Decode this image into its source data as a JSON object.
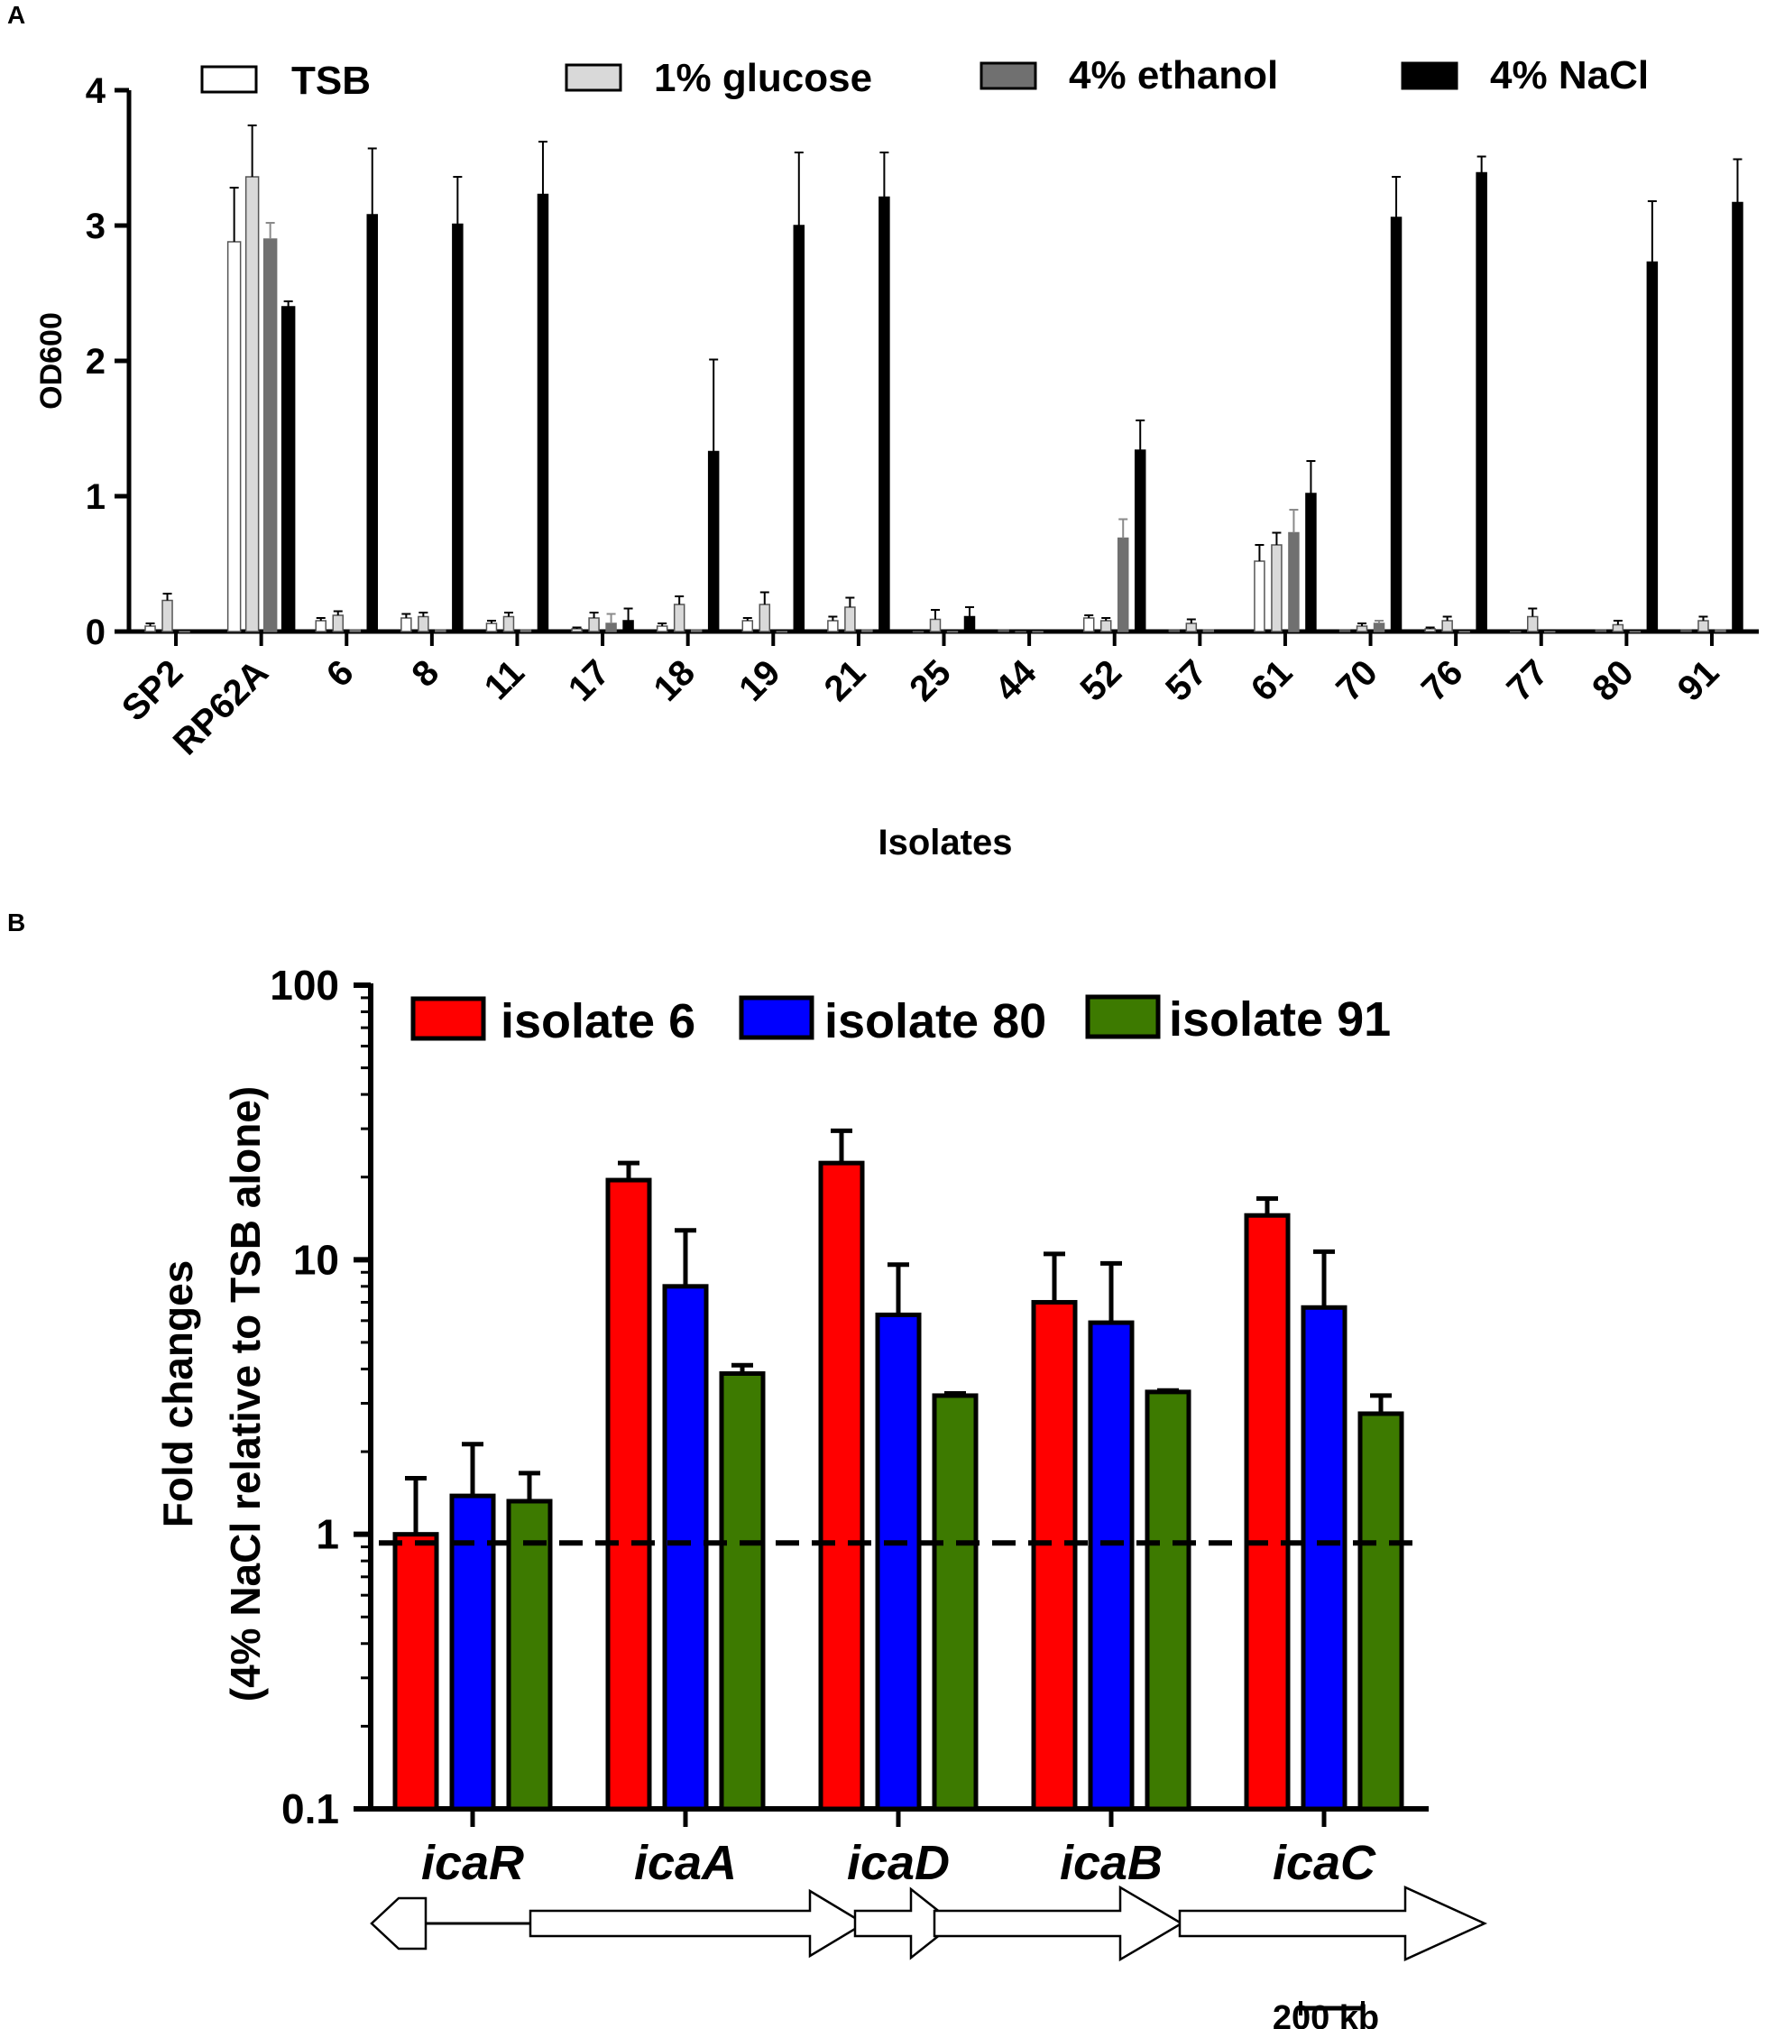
{
  "colors": {
    "tsb": "#ffffff",
    "glucose": "#d9d9d9",
    "ethanol": "#707070",
    "nacl": "#000000",
    "isolate6": "#ff0000",
    "isolate80": "#0000ff",
    "isolate91": "#3d7a00"
  },
  "panel_a": {
    "label": "A",
    "chart_data": {
      "type": "bar",
      "title": "",
      "xlabel": "Isolates",
      "ylabel": "OD600",
      "ylim": [
        0,
        4
      ],
      "yticks": [
        "0",
        "1",
        "2",
        "3",
        "4"
      ],
      "categories": [
        "SP2",
        "RP62A",
        "6",
        "8",
        "11",
        "17",
        "18",
        "19",
        "21",
        "25",
        "44",
        "52",
        "57",
        "61",
        "70",
        "76",
        "77",
        "80",
        "91"
      ],
      "series": [
        {
          "name": "TSB",
          "color_key": "tsb",
          "values": [
            0.04,
            2.88,
            0.08,
            0.1,
            0.06,
            0.02,
            0.04,
            0.08,
            0.08,
            0.0,
            0.01,
            0.1,
            0.01,
            0.52,
            0.01,
            0.02,
            0.0,
            0.01,
            0.01
          ],
          "errors": [
            0.02,
            0.4,
            0.02,
            0.03,
            0.02,
            0.01,
            0.02,
            0.02,
            0.03,
            0.0,
            0.0,
            0.02,
            0.0,
            0.12,
            0.0,
            0.01,
            0.0,
            0.0,
            0.0
          ]
        },
        {
          "name": "1% glucose",
          "color_key": "glucose",
          "values": [
            0.23,
            3.36,
            0.12,
            0.11,
            0.11,
            0.1,
            0.2,
            0.2,
            0.18,
            0.09,
            0.0,
            0.08,
            0.06,
            0.64,
            0.04,
            0.08,
            0.11,
            0.05,
            0.08
          ],
          "errors": [
            0.05,
            0.38,
            0.03,
            0.03,
            0.03,
            0.04,
            0.06,
            0.09,
            0.07,
            0.07,
            0.0,
            0.02,
            0.03,
            0.09,
            0.02,
            0.03,
            0.06,
            0.03,
            0.03
          ]
        },
        {
          "name": "4% ethanol",
          "color_key": "ethanol",
          "values": [
            0.0,
            2.9,
            0.01,
            0.01,
            0.01,
            0.06,
            0.01,
            0.0,
            0.01,
            0.0,
            0.0,
            0.69,
            0.01,
            0.73,
            0.06,
            0.0,
            0.0,
            0.0,
            0.01
          ],
          "errors": [
            0.0,
            0.12,
            0.0,
            0.0,
            0.0,
            0.07,
            0.0,
            0.0,
            0.0,
            0.0,
            0.0,
            0.14,
            0.0,
            0.17,
            0.02,
            0.0,
            0.0,
            0.0,
            0.0
          ]
        },
        {
          "name": "4% NaCl",
          "color_key": "nacl",
          "values": [
            0.01,
            2.4,
            3.08,
            3.01,
            3.23,
            0.08,
            1.33,
            3.0,
            3.21,
            0.11,
            0.0,
            1.34,
            0.0,
            1.02,
            3.06,
            3.39,
            0.0,
            2.73,
            3.17
          ],
          "errors": [
            0.0,
            0.04,
            0.49,
            0.35,
            0.39,
            0.09,
            0.68,
            0.54,
            0.33,
            0.07,
            0.0,
            0.22,
            0.0,
            0.24,
            0.3,
            0.12,
            0.0,
            0.45,
            0.32
          ]
        }
      ]
    }
  },
  "panel_b": {
    "label": "B",
    "chart_data": {
      "type": "bar",
      "title": "",
      "xlabel": "",
      "ylabel_line1": "Fold changes",
      "ylabel_line2": "(4% NaCl relative to TSB alone)",
      "yscale": "log",
      "ylim": [
        0.1,
        100
      ],
      "yticks": [
        "0.1",
        "1",
        "10",
        "100"
      ],
      "reference_line": 0.93,
      "categories": [
        "icaR",
        "icaA",
        "icaD",
        "icaB",
        "icaC"
      ],
      "series": [
        {
          "name": "isolate 6",
          "color_key": "isolate6",
          "values": [
            1.0,
            19.5,
            22.5,
            7.0,
            14.5
          ],
          "errors": [
            0.6,
            3.0,
            7.0,
            3.5,
            2.2
          ]
        },
        {
          "name": "isolate 80",
          "color_key": "isolate80",
          "values": [
            1.38,
            8.0,
            6.3,
            5.9,
            6.7
          ],
          "errors": [
            0.75,
            4.8,
            3.3,
            3.8,
            4.0
          ]
        },
        {
          "name": "isolate 91",
          "color_key": "isolate91",
          "values": [
            1.32,
            3.85,
            3.2,
            3.3,
            2.75
          ],
          "errors": [
            0.35,
            0.28,
            0.06,
            0.04,
            0.45
          ]
        }
      ]
    },
    "gene_map": {
      "scale_bar_label": "200 kb"
    }
  }
}
